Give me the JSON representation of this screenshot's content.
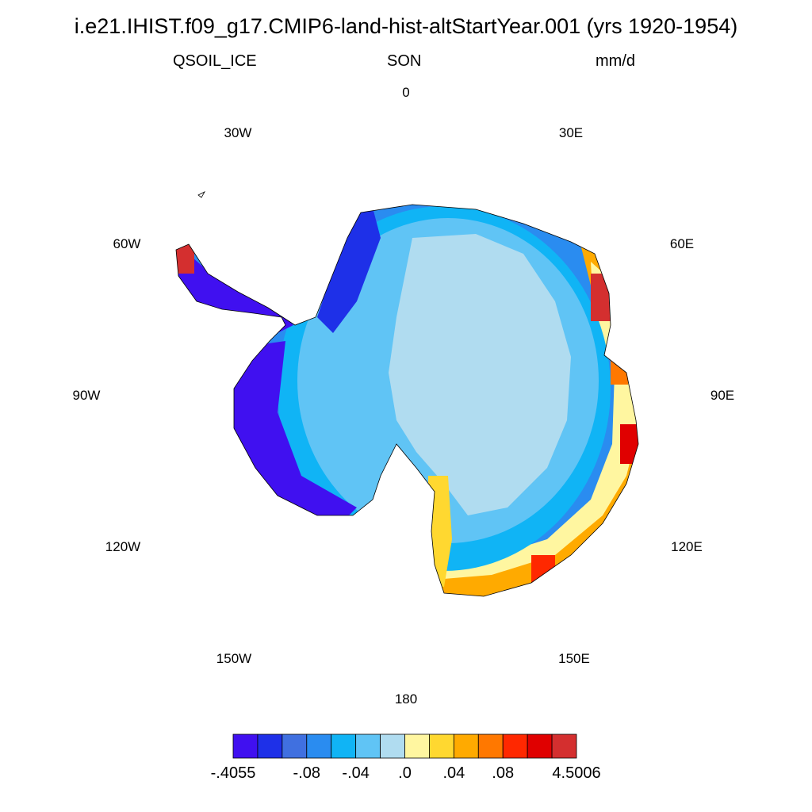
{
  "title": "i.e21.IHIST.f09_g17.CMIP6-land-hist-altStartYear.001 (yrs 1920-1954)",
  "variable": "QSOIL_ICE",
  "season": "SON",
  "units": "mm/d",
  "longitude_labels": {
    "lon_0": "0",
    "lon_30e": "30E",
    "lon_60e": "60E",
    "lon_90e": "90E",
    "lon_120e": "120E",
    "lon_150e": "150E",
    "lon_180": "180",
    "lon_150w": "150W",
    "lon_120w": "120W",
    "lon_90w": "90W",
    "lon_60w": "60W",
    "lon_30w": "30W"
  },
  "colorbar": {
    "colors": [
      "#4010f0",
      "#1e30e8",
      "#4070e0",
      "#2a8cf0",
      "#10b4f5",
      "#60c4f5",
      "#b0dcf0",
      "#fff6a0",
      "#ffd830",
      "#ffaa00",
      "#ff7800",
      "#ff2800",
      "#e00000",
      "#d42f2f"
    ],
    "labels": [
      {
        "text": "-.4055",
        "edge": 0
      },
      {
        "text": "-.08",
        "edge": 3
      },
      {
        "text": "-.04",
        "edge": 5
      },
      {
        "text": ".0",
        "edge": 7
      },
      {
        "text": ".04",
        "edge": 9
      },
      {
        "text": ".08",
        "edge": 11
      },
      {
        "text": "4.5006",
        "edge": 14
      }
    ]
  }
}
